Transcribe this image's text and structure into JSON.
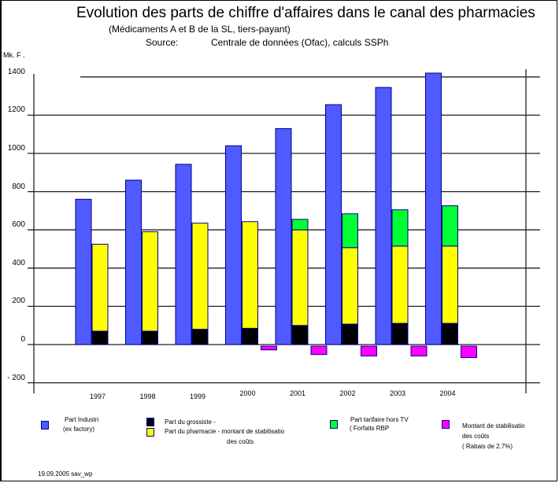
{
  "chart_data": {
    "type": "bar",
    "title": "Evolution des parts de chiffre d'affaires dans le canal des pharmacies",
    "subtitle": "(Médicaments A et B de la SL, tiers-payant)",
    "source_label": "Source:",
    "source": "Centrale de données (Ofac), calculs SSPh",
    "ylabel": "Mk. F .",
    "ylim": [
      -200,
      1400
    ],
    "yticks": [
      "1400",
      "1200",
      "1000",
      "800",
      "600",
      "400",
      "200",
      "0",
      "- 200"
    ],
    "ytick_values": [
      1400,
      1200,
      1000,
      800,
      600,
      400,
      200,
      0,
      -200
    ],
    "categories": [
      "1997",
      "1998",
      "1999",
      "2000",
      "2001",
      "2002",
      "2003",
      "2004"
    ],
    "grid": true,
    "series": [
      {
        "name": "Part Industri (ex factory)",
        "color": "#4f5bff",
        "stack": "industry",
        "values": [
          760,
          860,
          943,
          1040,
          1130,
          1255,
          1345,
          1420
        ]
      },
      {
        "name": "Part du grossiste",
        "color": "#000000",
        "stack": "distribution",
        "values": [
          70,
          70,
          80,
          85,
          100,
          107,
          111,
          111
        ]
      },
      {
        "name": "Part du pharmacie - montant de stabilisatio des couts",
        "color": "#ffff00",
        "stack": "distribution",
        "values": [
          455,
          520,
          555,
          558,
          500,
          400,
          404,
          404
        ]
      },
      {
        "name": "Part tarifaire hors TVA (Forfaits RBP)",
        "color": "#00ff33",
        "stack": "distribution",
        "values": [
          0,
          0,
          0,
          0,
          55,
          177,
          190,
          211
        ]
      },
      {
        "name": "Montant de stabilisatio des coûts (Rabais de 2.7%)",
        "color": "#ff00ff",
        "stack": "rebate",
        "values": [
          0,
          0,
          0,
          -28,
          -52,
          -60,
          -60,
          -68
        ]
      }
    ],
    "legend_position": "bottom"
  },
  "legend": [
    {
      "lines": [
        "Part Industri",
        "(ex factory)"
      ],
      "color": "#4f5bff"
    },
    {
      "lines": [
        "Part du grossiste -"
      ],
      "color": "#000000"
    },
    {
      "lines": [
        "Part du pharmacie  - montant de stabilisatio",
        "des coûts"
      ],
      "color": "#ffff00"
    },
    {
      "lines": [
        "Part tarifaire hors TV",
        "( Forfaits RBP"
      ],
      "color": "#00ff33"
    },
    {
      "lines": [
        "Montant de stabilisatio",
        "des coûts",
        "( Rabais de 2.7%)"
      ],
      "color": "#ff00ff"
    }
  ],
  "footer": "19.09.2005  sav_wp"
}
